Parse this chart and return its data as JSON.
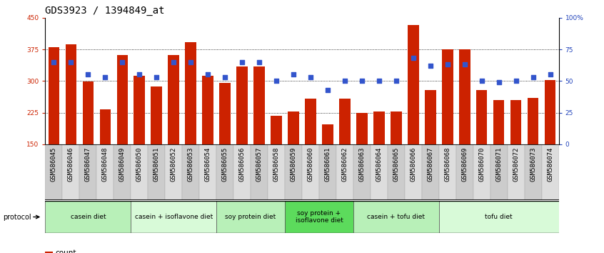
{
  "title": "GDS3923 / 1394849_at",
  "samples": [
    "GSM586045",
    "GSM586046",
    "GSM586047",
    "GSM586048",
    "GSM586049",
    "GSM586050",
    "GSM586051",
    "GSM586052",
    "GSM586053",
    "GSM586054",
    "GSM586055",
    "GSM586056",
    "GSM586057",
    "GSM586058",
    "GSM586059",
    "GSM586060",
    "GSM586061",
    "GSM586062",
    "GSM586063",
    "GSM586064",
    "GSM586065",
    "GSM586066",
    "GSM586067",
    "GSM586068",
    "GSM586069",
    "GSM586070",
    "GSM586071",
    "GSM586072",
    "GSM586073",
    "GSM586074"
  ],
  "bar_values": [
    380,
    387,
    298,
    233,
    362,
    313,
    287,
    362,
    392,
    313,
    295,
    335,
    335,
    218,
    228,
    258,
    197,
    258,
    225,
    228,
    228,
    433,
    278,
    375,
    375,
    278,
    255,
    255,
    260,
    303
  ],
  "blue_values": [
    65,
    65,
    55,
    53,
    65,
    55,
    53,
    65,
    65,
    55,
    53,
    65,
    65,
    50,
    55,
    53,
    43,
    50,
    50,
    50,
    50,
    68,
    62,
    63,
    63,
    50,
    49,
    50,
    53,
    55
  ],
  "groups": [
    {
      "label": "casein diet",
      "start": 0,
      "end": 4,
      "color": "#b8f0b8"
    },
    {
      "label": "casein + isoflavone diet",
      "start": 5,
      "end": 9,
      "color": "#d8fad8"
    },
    {
      "label": "soy protein diet",
      "start": 10,
      "end": 13,
      "color": "#b8f0b8"
    },
    {
      "label": "soy protein +\nisoflavone diet",
      "start": 14,
      "end": 17,
      "color": "#5cdb5c"
    },
    {
      "label": "casein + tofu diet",
      "start": 18,
      "end": 22,
      "color": "#b8f0b8"
    },
    {
      "label": "tofu diet",
      "start": 23,
      "end": 29,
      "color": "#d8fad8"
    }
  ],
  "ylim": [
    150,
    450
  ],
  "yticks": [
    150,
    225,
    300,
    375,
    450
  ],
  "right_yticks": [
    0,
    25,
    50,
    75,
    100
  ],
  "right_ylabels": [
    "0",
    "25",
    "50",
    "75",
    "100%"
  ],
  "bar_color": "#CC2200",
  "dot_color": "#3355CC",
  "bg_color": "#ffffff",
  "title_fontsize": 10,
  "tick_fontsize": 6.5,
  "label_fontsize": 7.5
}
